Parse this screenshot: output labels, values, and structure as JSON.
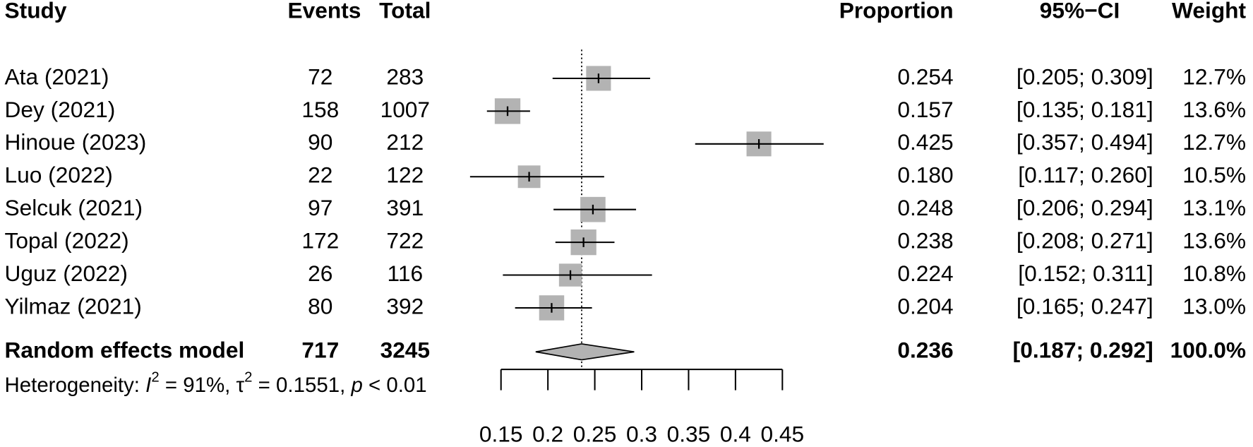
{
  "chart_data": {
    "type": "forest",
    "headers": {
      "study": "Study",
      "events": "Events",
      "total": "Total",
      "proportion": "Proportion",
      "ci": "95%−CI",
      "weight": "Weight"
    },
    "studies": [
      {
        "name": "Ata (2021)",
        "events": 72,
        "total": 283,
        "proportion": 0.254,
        "proportion_label": "0.254",
        "ci_lower": 0.205,
        "ci_upper": 0.309,
        "ci_label": "[0.205; 0.309]",
        "weight": 12.7,
        "weight_label": "12.7%"
      },
      {
        "name": "Dey (2021)",
        "events": 158,
        "total": 1007,
        "proportion": 0.157,
        "proportion_label": "0.157",
        "ci_lower": 0.135,
        "ci_upper": 0.181,
        "ci_label": "[0.135; 0.181]",
        "weight": 13.6,
        "weight_label": "13.6%"
      },
      {
        "name": "Hinoue (2023)",
        "events": 90,
        "total": 212,
        "proportion": 0.425,
        "proportion_label": "0.425",
        "ci_lower": 0.357,
        "ci_upper": 0.494,
        "ci_label": "[0.357; 0.494]",
        "weight": 12.7,
        "weight_label": "12.7%"
      },
      {
        "name": "Luo (2022)",
        "events": 22,
        "total": 122,
        "proportion": 0.18,
        "proportion_label": "0.180",
        "ci_lower": 0.117,
        "ci_upper": 0.26,
        "ci_label": "[0.117; 0.260]",
        "weight": 10.5,
        "weight_label": "10.5%"
      },
      {
        "name": "Selcuk (2021)",
        "events": 97,
        "total": 391,
        "proportion": 0.248,
        "proportion_label": "0.248",
        "ci_lower": 0.206,
        "ci_upper": 0.294,
        "ci_label": "[0.206; 0.294]",
        "weight": 13.1,
        "weight_label": "13.1%"
      },
      {
        "name": "Topal (2022)",
        "events": 172,
        "total": 722,
        "proportion": 0.238,
        "proportion_label": "0.238",
        "ci_lower": 0.208,
        "ci_upper": 0.271,
        "ci_label": "[0.208; 0.271]",
        "weight": 13.6,
        "weight_label": "13.6%"
      },
      {
        "name": "Uguz (2022)",
        "events": 26,
        "total": 116,
        "proportion": 0.224,
        "proportion_label": "0.224",
        "ci_lower": 0.152,
        "ci_upper": 0.311,
        "ci_label": "[0.152; 0.311]",
        "weight": 10.8,
        "weight_label": "10.8%"
      },
      {
        "name": "Yilmaz (2021)",
        "events": 80,
        "total": 392,
        "proportion": 0.204,
        "proportion_label": "0.204",
        "ci_lower": 0.165,
        "ci_upper": 0.247,
        "ci_label": "[0.165; 0.247]",
        "weight": 13.0,
        "weight_label": "13.0%"
      }
    ],
    "pooled": {
      "name": "Random effects model",
      "events": 717,
      "total": 3245,
      "proportion": 0.236,
      "proportion_label": "0.236",
      "ci_lower": 0.187,
      "ci_upper": 0.292,
      "ci_label": "[0.187; 0.292]",
      "weight": 100,
      "weight_label": "100.0%"
    },
    "heterogeneity": [
      "Heterogeneity: ",
      "I",
      "2",
      " = 91%, ",
      "τ",
      "2",
      " = 0.1551, ",
      "p",
      " < 0.01"
    ],
    "xlim": [
      0.15,
      0.45
    ],
    "xticks": [
      0.15,
      0.2,
      0.25,
      0.3,
      0.35,
      0.4,
      0.45
    ],
    "box_color": "#b3b3b3",
    "line_color": "#000000"
  }
}
